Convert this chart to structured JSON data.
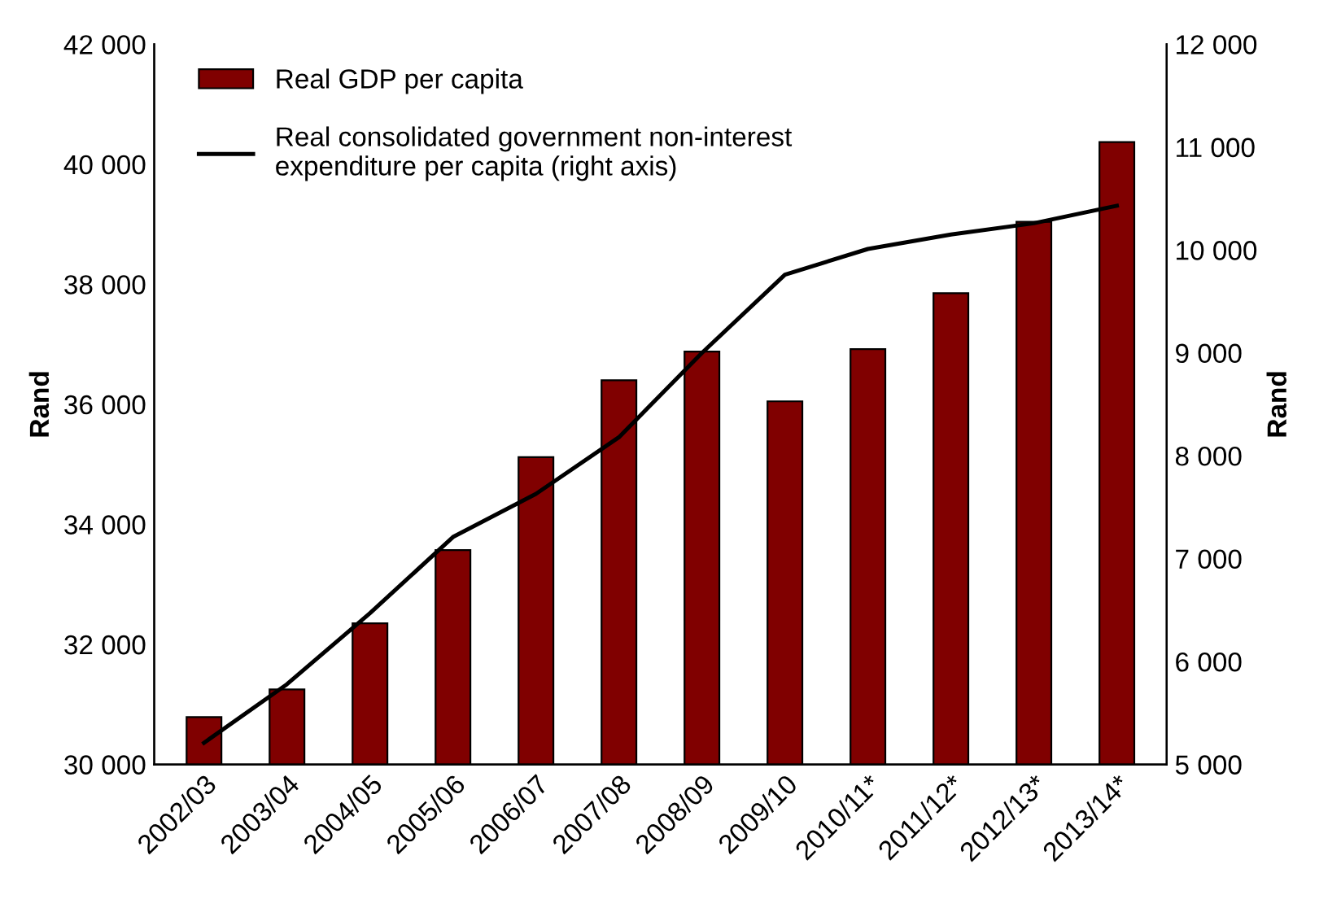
{
  "chart_data": {
    "type": "bar",
    "ylabel": "Rand",
    "y2label": "Rand",
    "categories": [
      "2002/03",
      "2003/04",
      "2004/05",
      "2005/06",
      "2006/07",
      "2007/08",
      "2008/09",
      "2009/10",
      "2010/11*",
      "2011/12*",
      "2012/13*",
      "2013/14*"
    ],
    "series": [
      {
        "name": "Real GDP per capita",
        "color": "#800000",
        "values": [
          30790,
          31250,
          32350,
          33570,
          35120,
          36400,
          36880,
          36050,
          36920,
          37850,
          39040,
          40370
        ]
      },
      {
        "name": "Real consolidated government non-interest\nexpenditure per capita (right axis)",
        "type": "line",
        "axis": "y2",
        "color": "#000000",
        "values": [
          5210,
          5780,
          6470,
          7210,
          7630,
          8180,
          9000,
          9760,
          10010,
          10150,
          10260,
          10430
        ]
      }
    ],
    "ylim": [
      30000,
      42000
    ],
    "yticks": [
      {
        "value": 30000,
        "label": "30 000"
      },
      {
        "value": 32000,
        "label": "32 000"
      },
      {
        "value": 34000,
        "label": "34 000"
      },
      {
        "value": 36000,
        "label": "36 000"
      },
      {
        "value": 38000,
        "label": "38 000"
      },
      {
        "value": 40000,
        "label": "40 000"
      },
      {
        "value": 42000,
        "label": "42 000"
      }
    ],
    "y2lim": [
      5000,
      12000
    ],
    "y2ticks": [
      {
        "value": 5000,
        "label": "5 000"
      },
      {
        "value": 6000,
        "label": "6 000"
      },
      {
        "value": 7000,
        "label": "7 000"
      },
      {
        "value": 8000,
        "label": "8 000"
      },
      {
        "value": 9000,
        "label": "9 000"
      },
      {
        "value": 10000,
        "label": "10 000"
      },
      {
        "value": 11000,
        "label": "11 000"
      },
      {
        "value": 12000,
        "label": "12 000"
      }
    ],
    "legend": "top left",
    "grid": false,
    "marker": "none",
    "line_style": "solid"
  }
}
